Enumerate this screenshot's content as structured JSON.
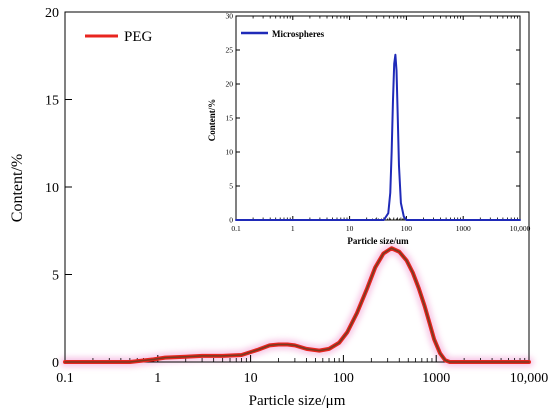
{
  "chart_data": [
    {
      "type": "line",
      "xscale": "log",
      "xlim": [
        0.1,
        10000
      ],
      "ylim": [
        0,
        20
      ],
      "xlabel": "Particle size/μm",
      "ylabel": "Content/%",
      "xtick_values": [
        0.1,
        1,
        10,
        100,
        1000,
        10000
      ],
      "xtick_labels": [
        "0.1",
        "1",
        "10",
        "100",
        "1000",
        "10,000"
      ],
      "ytick_values": [
        0,
        5,
        10,
        15,
        20
      ],
      "ytick_labels": [
        "0",
        "5",
        "10",
        "15",
        "20"
      ],
      "legend": "top-left",
      "grid": false,
      "series": [
        {
          "name": "PEG",
          "color": "#e8251f",
          "x": [
            0.1,
            0.5,
            0.9,
            1.2,
            2,
            3,
            5,
            8,
            12,
            16,
            20,
            25,
            30,
            40,
            55,
            70,
            90,
            110,
            140,
            180,
            220,
            270,
            330,
            400,
            480,
            560,
            650,
            750,
            850,
            950,
            1100,
            1250,
            1400,
            2000,
            5000,
            10000
          ],
          "y": [
            0,
            0,
            0.15,
            0.25,
            0.3,
            0.35,
            0.35,
            0.4,
            0.7,
            0.95,
            1.0,
            1.0,
            0.95,
            0.75,
            0.65,
            0.75,
            1.1,
            1.7,
            2.8,
            4.2,
            5.4,
            6.2,
            6.5,
            6.3,
            5.8,
            5.1,
            4.2,
            3.2,
            2.2,
            1.3,
            0.5,
            0.1,
            0,
            0,
            0,
            0
          ]
        }
      ]
    },
    {
      "type": "line",
      "xscale": "log",
      "xlim": [
        0.1,
        10000
      ],
      "ylim": [
        0,
        30
      ],
      "xlabel": "Particle size/um",
      "ylabel": "Content/%",
      "xtick_values": [
        0.1,
        1,
        10,
        100,
        1000,
        10000
      ],
      "xtick_labels": [
        "0.1",
        "1",
        "10",
        "100",
        "1000",
        "10,000"
      ],
      "ytick_values": [
        0,
        5,
        10,
        15,
        20,
        25,
        30
      ],
      "ytick_labels": [
        "0",
        "5",
        "10",
        "15",
        "20",
        "25",
        "30"
      ],
      "legend": "top-left",
      "grid": false,
      "series": [
        {
          "name": "Microspheres",
          "color": "#1f2ab8",
          "x": [
            0.1,
            1,
            10,
            40,
            48,
            52,
            55,
            58,
            61,
            64,
            67,
            70,
            74,
            80,
            90,
            100,
            1000,
            10000
          ],
          "y": [
            0,
            0,
            0,
            0,
            1,
            4,
            10,
            17.5,
            23,
            24.3,
            22,
            16,
            8,
            2.5,
            0.5,
            0,
            0,
            0
          ]
        }
      ]
    }
  ]
}
